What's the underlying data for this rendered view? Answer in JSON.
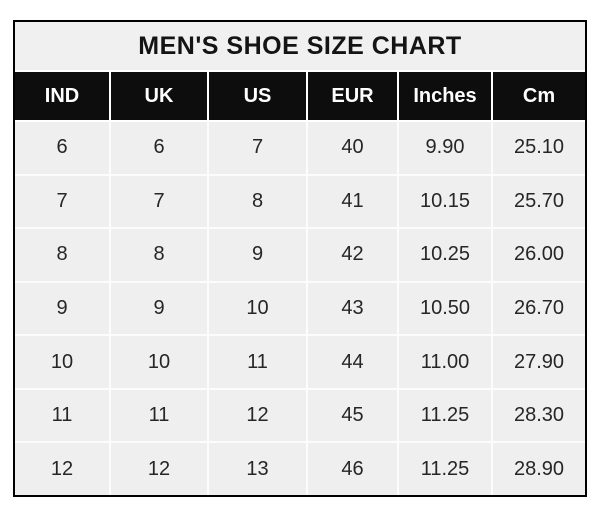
{
  "page": {
    "background": "#ffffff"
  },
  "table": {
    "title": "MEN'S SHOE SIZE CHART",
    "columns": [
      "IND",
      "UK",
      "US",
      "EUR",
      "Inches",
      "Cm"
    ],
    "rows": [
      [
        "6",
        "6",
        "7",
        "40",
        "9.90",
        "25.10"
      ],
      [
        "7",
        "7",
        "8",
        "41",
        "10.15",
        "25.70"
      ],
      [
        "8",
        "8",
        "9",
        "42",
        "10.25",
        "26.00"
      ],
      [
        "9",
        "9",
        "10",
        "43",
        "10.50",
        "26.70"
      ],
      [
        "10",
        "10",
        "11",
        "44",
        "11.00",
        "27.90"
      ],
      [
        "11",
        "11",
        "12",
        "45",
        "11.25",
        "28.30"
      ],
      [
        "12",
        "12",
        "13",
        "46",
        "11.25",
        "28.90"
      ]
    ],
    "colors": {
      "frame_border": "#000000",
      "title_bg": "#f0f0f0",
      "title_text": "#141414",
      "header_bg": "#0d0d0d",
      "header_text": "#fefefe",
      "cell_bg": "#efefef",
      "cell_text": "#262626",
      "separator": "#ffffff"
    }
  },
  "chart_data": {
    "type": "table",
    "title": "MEN'S SHOE SIZE CHART",
    "columns": [
      "IND",
      "UK",
      "US",
      "EUR",
      "Inches",
      "Cm"
    ],
    "rows": [
      [
        6,
        6,
        7,
        40,
        9.9,
        25.1
      ],
      [
        7,
        7,
        8,
        41,
        10.15,
        25.7
      ],
      [
        8,
        8,
        9,
        42,
        10.25,
        26.0
      ],
      [
        9,
        9,
        10,
        43,
        10.5,
        26.7
      ],
      [
        10,
        10,
        11,
        44,
        11.0,
        27.9
      ],
      [
        11,
        11,
        12,
        45,
        11.25,
        28.3
      ],
      [
        12,
        12,
        13,
        46,
        11.25,
        28.9
      ]
    ]
  }
}
